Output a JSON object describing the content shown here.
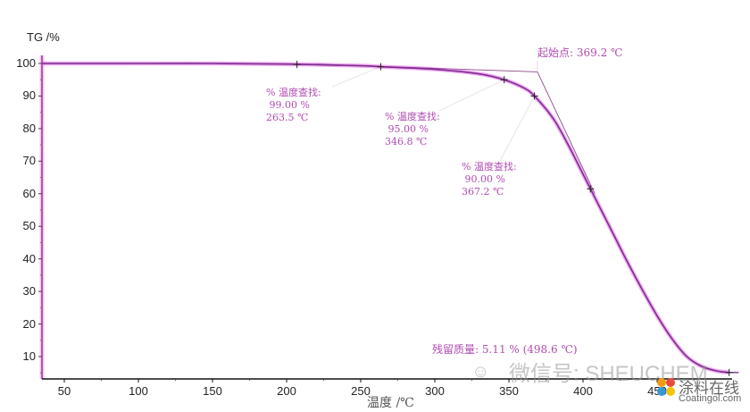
{
  "chart_data": {
    "type": "line",
    "title": "",
    "xlabel": "温度 /℃",
    "ylabel": "TG /%",
    "xlim": [
      35,
      505
    ],
    "ylim": [
      3,
      102
    ],
    "x_ticks": [
      50,
      100,
      150,
      200,
      250,
      300,
      350,
      400,
      450
    ],
    "y_ticks": [
      10,
      20,
      30,
      40,
      50,
      60,
      70,
      80,
      90,
      100
    ],
    "grid": false,
    "legend": "none",
    "series": [
      {
        "name": "TG",
        "color": "#7b2d8e",
        "glow_color": "#e040e0",
        "x": [
          35,
          100,
          150,
          200,
          250,
          263.5,
          300,
          330,
          346.8,
          360,
          367.2,
          380,
          390,
          400,
          410,
          420,
          430,
          440,
          450,
          460,
          470,
          480,
          490,
          498.6
        ],
        "y": [
          100,
          100,
          100,
          99.8,
          99.3,
          99.0,
          98.2,
          96.8,
          95.0,
          92.5,
          90.0,
          83.0,
          75.0,
          66.0,
          57.0,
          48.0,
          39.0,
          30.5,
          22.5,
          15.5,
          10.0,
          7.0,
          5.6,
          5.11
        ]
      }
    ],
    "annotations": [
      {
        "type": "temperature_lookup",
        "label": "% 温度查找:",
        "value": "99.00 %",
        "temp": "263.5 ℃",
        "x": 263.5,
        "y": 99.0
      },
      {
        "type": "temperature_lookup",
        "label": "% 温度查找:",
        "value": "95.00 %",
        "temp": "346.8 ℃",
        "x": 346.8,
        "y": 95.0
      },
      {
        "type": "temperature_lookup",
        "label": "% 温度查找:",
        "value": "90.00 %",
        "temp": "367.2 ℃",
        "x": 367.2,
        "y": 90.0
      },
      {
        "type": "onset",
        "text": "起始点: 369.2 ℃",
        "x": 369.2
      },
      {
        "type": "residual",
        "text": "残留质量: 5.11 % (498.6 ℃)",
        "x": 498.6,
        "y": 5.11
      }
    ],
    "extra_markers": [
      {
        "x": 207,
        "y": 99.7
      },
      {
        "x": 405,
        "y": 61.5
      },
      {
        "x": 498.6,
        "y": 5.11
      }
    ]
  },
  "labels": {
    "ylabel": "TG /%",
    "xlabel": "温度 /℃",
    "onset": "起始点: 369.2 ℃",
    "residual": "残留质量: 5.11 % (498.6 ℃)",
    "a1": "% 温度查找:\n 99.00 %\n263.5 ℃",
    "a2": "% 温度查找:\n 95.00 %\n346.8 ℃",
    "a3": "% 温度查找:\n 90.00 %\n367.2 ℃"
  },
  "watermark": {
    "text": "微信号: SHEUCHEM",
    "logo_cn": "涂料在线",
    "logo_en": "Coatingol.com"
  }
}
